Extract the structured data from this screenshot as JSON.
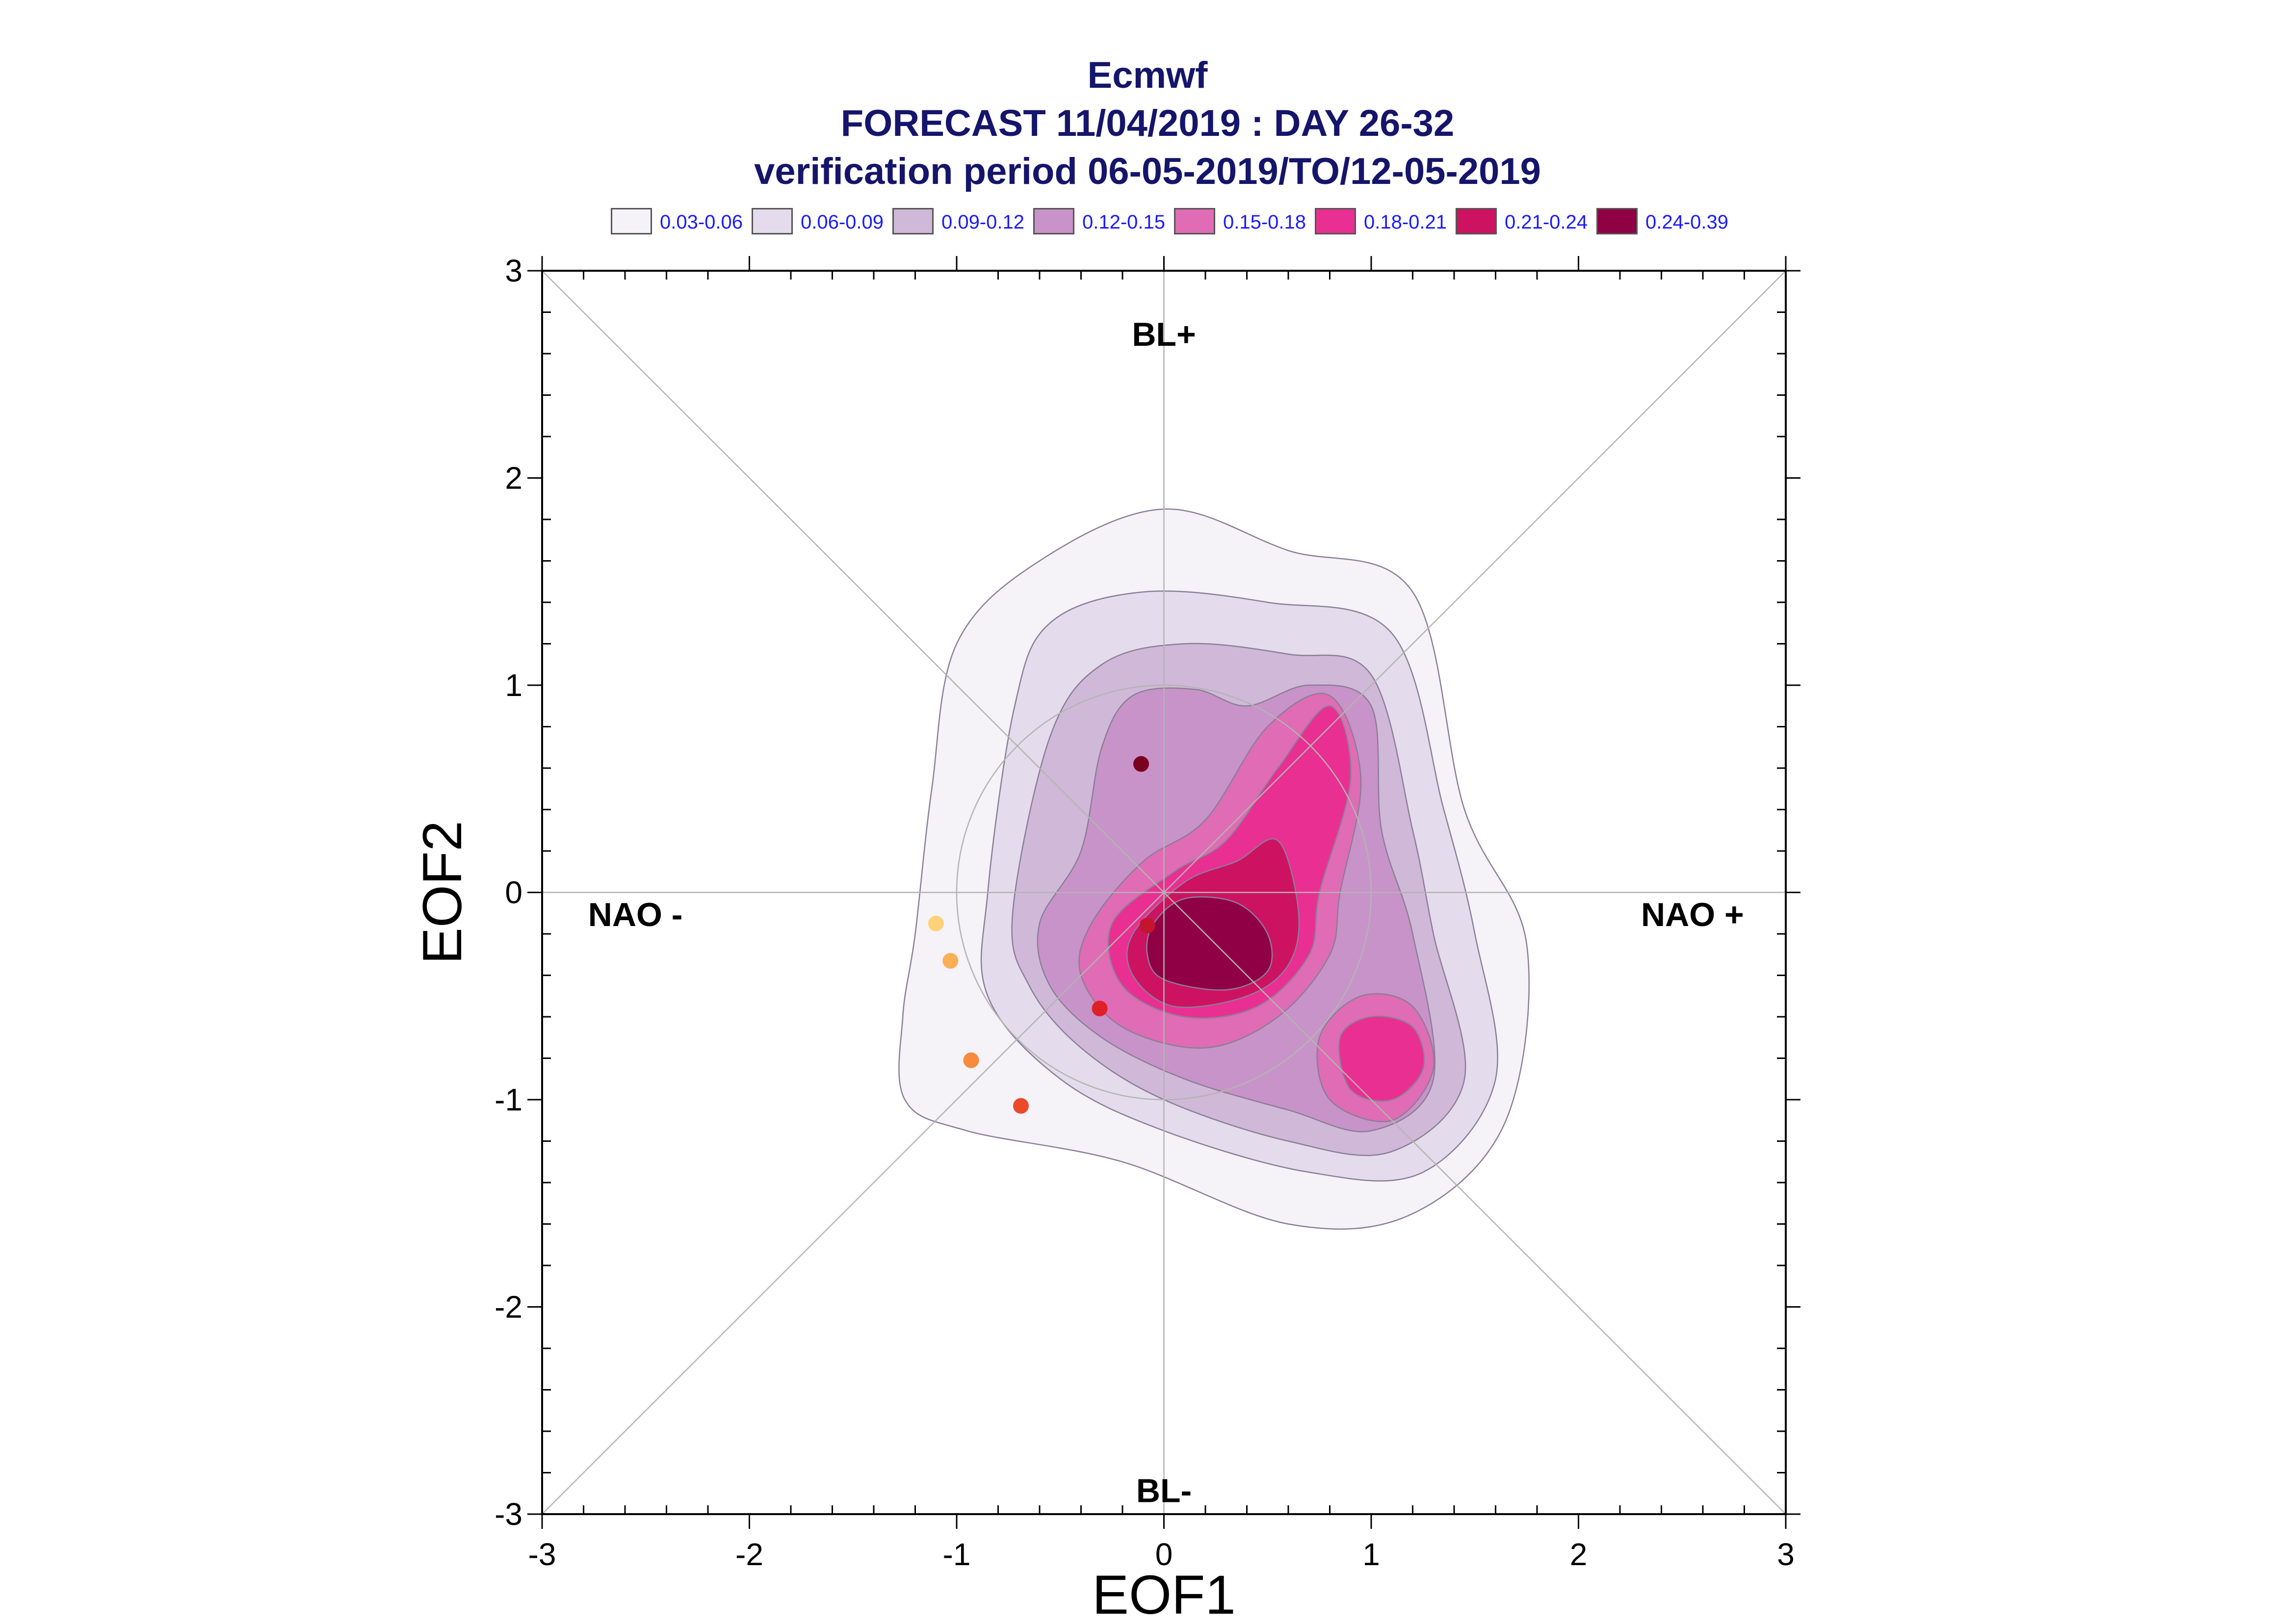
{
  "chart_data": {
    "type": "contour",
    "title": [
      "Ecmwf",
      "FORECAST 11/04/2019 : DAY 26-32",
      "verification period 06-05-2019/TO/12-05-2019"
    ],
    "xlabel": "EOF1",
    "ylabel": "EOF2",
    "xlim": [
      -3,
      3
    ],
    "ylim": [
      -3,
      3
    ],
    "xticks": [
      -3,
      -2,
      -1,
      0,
      1,
      2,
      3
    ],
    "yticks": [
      -3,
      -2,
      -1,
      0,
      1,
      2,
      3
    ],
    "xtick_labels": [
      "-3",
      "-2",
      "-1",
      "0",
      "1",
      "2",
      "3"
    ],
    "ytick_labels": [
      "-3",
      "-2",
      "-1",
      "0",
      "1",
      "2",
      "3"
    ],
    "regime_labels": [
      {
        "text": "BL+",
        "x": 0.0,
        "y": 2.7
      },
      {
        "text": "BL-",
        "x": 0.0,
        "y": -2.88
      },
      {
        "text": "NAO -",
        "x": -2.55,
        "y": -0.1
      },
      {
        "text": "NAO +",
        "x": 2.55,
        "y": -0.1
      }
    ],
    "legend": {
      "placement": "top",
      "items": [
        {
          "label": "0.03-0.06",
          "color": "#f5f2f8"
        },
        {
          "label": "0.06-0.09",
          "color": "#e4dcec"
        },
        {
          "label": "0.09-0.12",
          "color": "#d0b8d8"
        },
        {
          "label": "0.12-0.15",
          "color": "#c893c8"
        },
        {
          "label": "0.15-0.18",
          "color": "#df6cb4"
        },
        {
          "label": "0.18-0.21",
          "color": "#ea2f92"
        },
        {
          "label": "0.21-0.24",
          "color": "#ce1262"
        },
        {
          "label": "0.24-0.39",
          "color": "#900045"
        }
      ]
    },
    "density_levels": [
      {
        "level": "0.03-0.06",
        "color": "#f5f2f8",
        "regions": [
          [
            [
              -1.2,
              -0.2
            ],
            [
              -1.12,
              0.5
            ],
            [
              -1.0,
              1.2
            ],
            [
              -0.6,
              1.6
            ],
            [
              0.0,
              1.85
            ],
            [
              0.6,
              1.65
            ],
            [
              1.2,
              1.45
            ],
            [
              1.45,
              0.4
            ],
            [
              1.75,
              -0.25
            ],
            [
              1.65,
              -1.1
            ],
            [
              1.2,
              -1.55
            ],
            [
              0.6,
              -1.6
            ],
            [
              -0.2,
              -1.3
            ],
            [
              -0.95,
              -1.15
            ],
            [
              -1.25,
              -1.0
            ],
            [
              -1.26,
              -0.6
            ]
          ]
        ]
      },
      {
        "level": "0.06-0.09",
        "color": "#e4dcec",
        "regions": [
          [
            [
              -0.85,
              0.0
            ],
            [
              -0.72,
              0.9
            ],
            [
              -0.55,
              1.3
            ],
            [
              -0.1,
              1.45
            ],
            [
              0.5,
              1.4
            ],
            [
              1.1,
              1.25
            ],
            [
              1.35,
              0.4
            ],
            [
              1.5,
              -0.2
            ],
            [
              1.6,
              -0.9
            ],
            [
              1.25,
              -1.35
            ],
            [
              0.7,
              -1.35
            ],
            [
              0.0,
              -1.15
            ],
            [
              -0.5,
              -0.9
            ],
            [
              -0.85,
              -0.5
            ]
          ]
        ]
      },
      {
        "level": "0.09-0.12",
        "color": "#d0b8d8",
        "regions": [
          [
            [
              -0.73,
              -0.1
            ],
            [
              -0.55,
              0.75
            ],
            [
              -0.3,
              1.1
            ],
            [
              0.1,
              1.2
            ],
            [
              0.6,
              1.15
            ],
            [
              1.0,
              1.05
            ],
            [
              1.2,
              0.3
            ],
            [
              1.3,
              -0.2
            ],
            [
              1.45,
              -0.9
            ],
            [
              1.1,
              -1.25
            ],
            [
              0.6,
              -1.2
            ],
            [
              0.0,
              -1.0
            ],
            [
              -0.4,
              -0.75
            ],
            [
              -0.65,
              -0.45
            ]
          ]
        ]
      },
      {
        "level": "0.12-0.15",
        "color": "#c893c8",
        "regions": [
          [
            [
              -0.6,
              -0.15
            ],
            [
              -0.4,
              0.2
            ],
            [
              -0.3,
              0.7
            ],
            [
              -0.15,
              0.95
            ],
            [
              0.15,
              0.98
            ],
            [
              0.4,
              0.9
            ],
            [
              0.7,
              1.0
            ],
            [
              1.0,
              0.9
            ],
            [
              1.05,
              0.3
            ],
            [
              1.2,
              -0.2
            ],
            [
              1.3,
              -0.9
            ],
            [
              1.0,
              -1.15
            ],
            [
              0.6,
              -1.05
            ],
            [
              0.1,
              -0.9
            ],
            [
              -0.3,
              -0.7
            ],
            [
              -0.55,
              -0.45
            ]
          ]
        ]
      },
      {
        "level": "0.15-0.18",
        "color": "#df6cb4",
        "regions": [
          [
            [
              -0.35,
              -0.15
            ],
            [
              -0.1,
              0.15
            ],
            [
              0.2,
              0.35
            ],
            [
              0.5,
              0.8
            ],
            [
              0.8,
              0.95
            ],
            [
              0.95,
              0.55
            ],
            [
              0.85,
              0.0
            ],
            [
              0.8,
              -0.3
            ],
            [
              0.55,
              -0.6
            ],
            [
              0.2,
              -0.75
            ],
            [
              -0.2,
              -0.65
            ],
            [
              -0.4,
              -0.4
            ]
          ],
          [
            [
              0.75,
              -0.7
            ],
            [
              0.95,
              -0.5
            ],
            [
              1.2,
              -0.55
            ],
            [
              1.3,
              -0.85
            ],
            [
              1.1,
              -1.1
            ],
            [
              0.8,
              -1.0
            ]
          ]
        ]
      },
      {
        "level": "0.18-0.21",
        "color": "#ea2f92",
        "regions": [
          [
            [
              -0.25,
              -0.15
            ],
            [
              0.05,
              0.1
            ],
            [
              0.3,
              0.25
            ],
            [
              0.55,
              0.6
            ],
            [
              0.8,
              0.9
            ],
            [
              0.9,
              0.55
            ],
            [
              0.75,
              0.0
            ],
            [
              0.7,
              -0.3
            ],
            [
              0.45,
              -0.55
            ],
            [
              0.1,
              -0.6
            ],
            [
              -0.2,
              -0.45
            ]
          ],
          [
            [
              0.85,
              -0.7
            ],
            [
              1.0,
              -0.6
            ],
            [
              1.2,
              -0.65
            ],
            [
              1.25,
              -0.85
            ],
            [
              1.1,
              -1.0
            ],
            [
              0.9,
              -0.95
            ]
          ]
        ]
      },
      {
        "level": "0.21-0.24",
        "color": "#ce1262",
        "regions": [
          [
            [
              -0.15,
              -0.2
            ],
            [
              0.1,
              0.05
            ],
            [
              0.35,
              0.15
            ],
            [
              0.55,
              0.25
            ],
            [
              0.65,
              -0.1
            ],
            [
              0.6,
              -0.35
            ],
            [
              0.4,
              -0.5
            ],
            [
              0.05,
              -0.55
            ],
            [
              -0.15,
              -0.4
            ]
          ]
        ]
      },
      {
        "level": "0.24-0.39",
        "color": "#900045",
        "regions": [
          [
            [
              -0.05,
              -0.15
            ],
            [
              0.1,
              -0.03
            ],
            [
              0.35,
              -0.05
            ],
            [
              0.5,
              -0.2
            ],
            [
              0.5,
              -0.38
            ],
            [
              0.3,
              -0.47
            ],
            [
              0.0,
              -0.42
            ],
            [
              -0.08,
              -0.3
            ]
          ]
        ]
      }
    ],
    "points": [
      {
        "x": -0.11,
        "y": 0.62,
        "color": "#7a0020"
      },
      {
        "x": -0.08,
        "y": -0.16,
        "color": "#c4142e"
      },
      {
        "x": -0.31,
        "y": -0.56,
        "color": "#e02028"
      },
      {
        "x": -1.1,
        "y": -0.15,
        "color": "#ffd27a"
      },
      {
        "x": -1.03,
        "y": -0.33,
        "color": "#fcae55"
      },
      {
        "x": -0.93,
        "y": -0.81,
        "color": "#f78a3c"
      },
      {
        "x": -0.69,
        "y": -1.03,
        "color": "#ea4a2a"
      }
    ]
  }
}
